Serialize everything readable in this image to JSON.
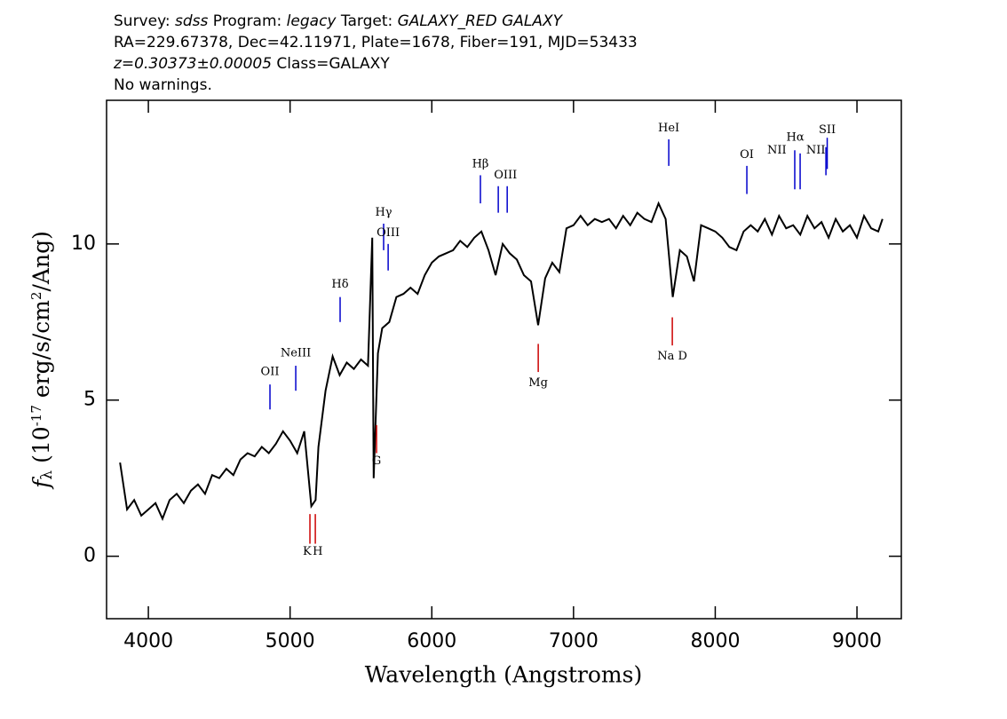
{
  "chart_data": {
    "type": "line",
    "title_lines": [
      [
        {
          "text": "Survey: "
        },
        {
          "text": "sdss",
          "italic": true
        },
        {
          "text": " Program: "
        },
        {
          "text": "legacy",
          "italic": true
        },
        {
          "text": " Target: "
        },
        {
          "text": "GALAXY_RED GALAXY",
          "italic": true
        }
      ],
      [
        {
          "text": "RA=229.67378, Dec=42.11971, Plate=1678, Fiber=191, MJD=53433"
        }
      ],
      [
        {
          "text": "z=0.30373±0.00005",
          "italic": true
        },
        {
          "text": " Class=GALAXY"
        }
      ],
      [
        {
          "text": "No warnings."
        }
      ]
    ],
    "x_label": "Wavelength (Angstroms)",
    "y_label": [
      {
        "text": "f",
        "italic": true
      },
      {
        "text": "λ",
        "shift": "sub"
      },
      {
        "text": " (10"
      },
      {
        "text": "-17",
        "shift": "super"
      },
      {
        "text": " erg/s/cm"
      },
      {
        "text": "2",
        "shift": "super"
      },
      {
        "text": "/Ang)"
      }
    ],
    "xlim": [
      3705,
      9313
    ],
    "ylim": [
      -2,
      14.6
    ],
    "xticks": [
      4000,
      5000,
      6000,
      7000,
      8000,
      9000
    ],
    "yticks": [
      0,
      5,
      10
    ],
    "series": [
      {
        "name": "flux",
        "color": "#000000",
        "x": [
          3800,
          3850,
          3900,
          3950,
          4000,
          4050,
          4100,
          4150,
          4200,
          4250,
          4300,
          4350,
          4400,
          4450,
          4500,
          4550,
          4600,
          4650,
          4700,
          4750,
          4800,
          4850,
          4900,
          4950,
          5000,
          5050,
          5100,
          5150,
          5180,
          5200,
          5250,
          5300,
          5350,
          5400,
          5450,
          5500,
          5550,
          5580,
          5590,
          5620,
          5650,
          5700,
          5750,
          5800,
          5850,
          5900,
          5950,
          6000,
          6050,
          6100,
          6150,
          6200,
          6250,
          6300,
          6350,
          6400,
          6450,
          6500,
          6550,
          6600,
          6650,
          6700,
          6750,
          6800,
          6850,
          6900,
          6950,
          7000,
          7050,
          7100,
          7150,
          7200,
          7250,
          7300,
          7350,
          7400,
          7450,
          7500,
          7550,
          7600,
          7650,
          7700,
          7750,
          7800,
          7850,
          7900,
          7950,
          8000,
          8050,
          8100,
          8150,
          8200,
          8250,
          8300,
          8350,
          8400,
          8450,
          8500,
          8550,
          8600,
          8650,
          8700,
          8750,
          8800,
          8850,
          8900,
          8950,
          9000,
          9050,
          9100,
          9150,
          9180
        ],
        "values": [
          3.0,
          1.5,
          1.8,
          1.3,
          1.5,
          1.7,
          1.2,
          1.8,
          2.0,
          1.7,
          2.1,
          2.3,
          2.0,
          2.6,
          2.5,
          2.8,
          2.6,
          3.1,
          3.3,
          3.2,
          3.5,
          3.3,
          3.6,
          4.0,
          3.7,
          3.3,
          4.0,
          1.6,
          1.8,
          3.5,
          5.3,
          6.4,
          5.8,
          6.2,
          6.0,
          6.3,
          6.1,
          10.2,
          2.5,
          6.5,
          7.3,
          7.5,
          8.3,
          8.4,
          8.6,
          8.4,
          9.0,
          9.4,
          9.6,
          9.7,
          9.8,
          10.1,
          9.9,
          10.2,
          10.4,
          9.8,
          9.0,
          10.0,
          9.7,
          9.5,
          9.0,
          8.8,
          7.4,
          8.9,
          9.4,
          9.1,
          10.5,
          10.6,
          10.9,
          10.6,
          10.8,
          10.7,
          10.8,
          10.5,
          10.9,
          10.6,
          11.0,
          10.8,
          10.7,
          11.3,
          10.8,
          8.3,
          9.8,
          9.6,
          8.8,
          10.6,
          10.5,
          10.4,
          10.2,
          9.9,
          9.8,
          10.4,
          10.6,
          10.4,
          10.8,
          10.3,
          10.9,
          10.5,
          10.6,
          10.3,
          10.9,
          10.5,
          10.7,
          10.2,
          10.8,
          10.4,
          10.6,
          10.2,
          10.9,
          10.5,
          10.4,
          10.8
        ]
      }
    ],
    "line_markers": [
      {
        "label": "OII",
        "x": 4858,
        "y": [
          4.7,
          5.5
        ],
        "label_y": 5.9,
        "color": "#0000cc"
      },
      {
        "label": "NeIII",
        "x": 5040,
        "y": [
          5.3,
          6.1
        ],
        "label_y": 6.5,
        "color": "#0000cc"
      },
      {
        "label": "Hδ",
        "x": 5353,
        "y": [
          7.5,
          8.3
        ],
        "label_y": 8.7,
        "color": "#0000cc"
      },
      {
        "label": "Hγ",
        "x": 5660,
        "y": [
          9.8,
          10.65
        ],
        "label_y": 11.0,
        "color": "#0000cc"
      },
      {
        "label": "OIII",
        "x": 5692,
        "y": [
          9.15,
          10.0
        ],
        "label_y": 10.35,
        "color": "#0000cc"
      },
      {
        "label": "Hβ",
        "x": 6343,
        "y": [
          11.3,
          12.2
        ],
        "label_y": 12.55,
        "color": "#0000cc"
      },
      {
        "label": "OIII",
        "x": 6469,
        "y": [
          11.0,
          11.85
        ],
        "label_y": 12.2,
        "color": "#0000cc",
        "label_x": 6520
      },
      {
        "label": "OIII",
        "x": 6532,
        "y": [
          11.0,
          11.85
        ],
        "color": "#0000cc"
      },
      {
        "label": "HeI",
        "x": 7672,
        "y": [
          12.5,
          13.35
        ],
        "label_y": 13.7,
        "color": "#0000cc"
      },
      {
        "label": "OI",
        "x": 8223,
        "y": [
          11.6,
          12.5
        ],
        "label_y": 12.85,
        "color": "#0000cc"
      },
      {
        "label": "NII",
        "x": 8561,
        "y": [
          11.75,
          13.0
        ],
        "label_y": 13.0,
        "color": "#0000cc",
        "label_x": 8435
      },
      {
        "label": "Hα",
        "x": 8599,
        "y": [
          11.75,
          12.9
        ],
        "label_y": 13.4,
        "color": "#0000cc",
        "label_x": 8565
      },
      {
        "label": "NII",
        "x": 8781,
        "y": [
          12.2,
          13.1
        ],
        "label_y": 13.0,
        "color": "#0000cc",
        "label_x": 8710
      },
      {
        "label": "SII",
        "x": 8790,
        "y": [
          12.4,
          13.4
        ],
        "label_y": 13.65,
        "color": "#0000cc"
      },
      {
        "label": "K",
        "x": 5140,
        "y": [
          0.4,
          1.35
        ],
        "label_y": 0.15,
        "color": "#cc0000",
        "label_x": 5120
      },
      {
        "label": "H",
        "x": 5178,
        "y": [
          0.4,
          1.35
        ],
        "label_y": 0.15,
        "color": "#cc0000",
        "label_x": 5195
      },
      {
        "label": "G",
        "x": 5610,
        "y": [
          3.3,
          4.2
        ],
        "label_y": 3.05,
        "color": "#cc0000"
      },
      {
        "label": "Mg",
        "x": 6751,
        "y": [
          5.9,
          6.8
        ],
        "label_y": 5.55,
        "color": "#cc0000"
      },
      {
        "label": "Na D",
        "x": 7697,
        "y": [
          6.75,
          7.65
        ],
        "label_y": 6.4,
        "color": "#cc0000"
      }
    ]
  }
}
